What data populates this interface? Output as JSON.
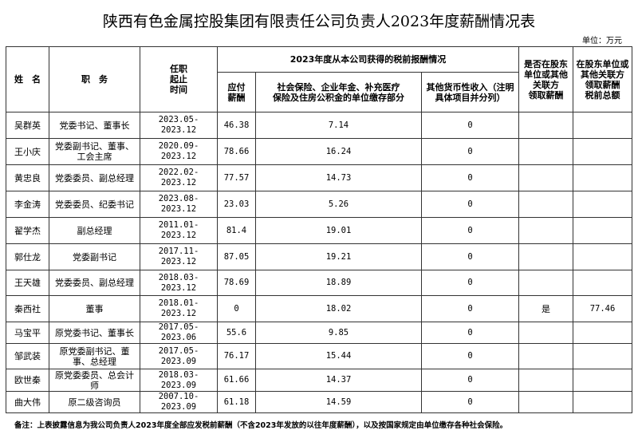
{
  "title": "陕西有色金属控股集团有限责任公司负责人2023年度薪酬情况表",
  "unit": "单位：万元",
  "headers": {
    "name": "姓　名",
    "position": "职　务",
    "tenure": "任职\n起止\n时间",
    "group": "2023年度从本公司获得的税前报酬情况",
    "salary": "应付\n薪酬",
    "insurance": "社会保险、企业年金、补充医疗\n保险及住房公积金的单位缴存部分",
    "other": "其他货币性收入（注明\n具体项目并分列）",
    "shareholder_flag": "是否在股东\n单位或其他\n关联方\n领取薪酬",
    "shareholder_total": "在股东单位或\n其他关联方\n领取薪酬\n税前总额"
  },
  "rows": [
    {
      "name": "吴群英",
      "position": "党委书记、董事长",
      "tenure": "2023.05-2023.12",
      "salary": "46.38",
      "insurance": "7.14",
      "other": "0",
      "flag": "",
      "total": ""
    },
    {
      "name": "王小庆",
      "position": "党委副书记、董事、工会主席",
      "tenure": "2020.09-2023.12",
      "salary": "78.66",
      "insurance": "16.24",
      "other": "0",
      "flag": "",
      "total": ""
    },
    {
      "name": "黄忠良",
      "position": "党委委员、副总经理",
      "tenure": "2022.02-2023.12",
      "salary": "77.57",
      "insurance": "14.73",
      "other": "0",
      "flag": "",
      "total": ""
    },
    {
      "name": "李金涛",
      "position": "党委委员、纪委书记",
      "tenure": "2023.08-2023.12",
      "salary": "23.03",
      "insurance": "5.26",
      "other": "0",
      "flag": "",
      "total": ""
    },
    {
      "name": "翟学杰",
      "position": "副总经理",
      "tenure": "2011.01-2023.12",
      "salary": "81.4",
      "insurance": "19.01",
      "other": "0",
      "flag": "",
      "total": ""
    },
    {
      "name": "郭仕龙",
      "position": "党委副书记",
      "tenure": "2017.11-2023.12",
      "salary": "87.05",
      "insurance": "19.21",
      "other": "0",
      "flag": "",
      "total": ""
    },
    {
      "name": "王天雄",
      "position": "党委委员、副总经理",
      "tenure": "2018.03-2023.12",
      "salary": "78.69",
      "insurance": "18.89",
      "other": "0",
      "flag": "",
      "total": ""
    },
    {
      "name": "秦西社",
      "position": "董事",
      "tenure": "2018.01-2023.12",
      "salary": "0",
      "insurance": "18.02",
      "other": "0",
      "flag": "是",
      "total": "77.46"
    },
    {
      "name": "马宝平",
      "position": "原党委书记、董事长",
      "tenure": "2017.05-2023.06",
      "salary": "55.6",
      "insurance": "9.85",
      "other": "0",
      "flag": "",
      "total": ""
    },
    {
      "name": "邹武装",
      "position": "原党委副书记、董事、总经理",
      "tenure": "2017.05-2023.09",
      "salary": "76.17",
      "insurance": "15.44",
      "other": "0",
      "flag": "",
      "total": ""
    },
    {
      "name": "欧世秦",
      "position": "原党委委员、总会计师",
      "tenure": "2018.03-2023.09",
      "salary": "61.66",
      "insurance": "14.37",
      "other": "0",
      "flag": "",
      "total": ""
    },
    {
      "name": "曲大伟",
      "position": "原二级咨询员",
      "tenure": "2007.10-2023.09",
      "salary": "61.18",
      "insurance": "14.59",
      "other": "0",
      "flag": "",
      "total": ""
    }
  ],
  "note": "备注：上表披露信息为我公司负责人2023年度全部应发税前薪酬（不含2023年发放的以往年度薪酬），以及按国家规定由单位缴存各种社会保险。"
}
